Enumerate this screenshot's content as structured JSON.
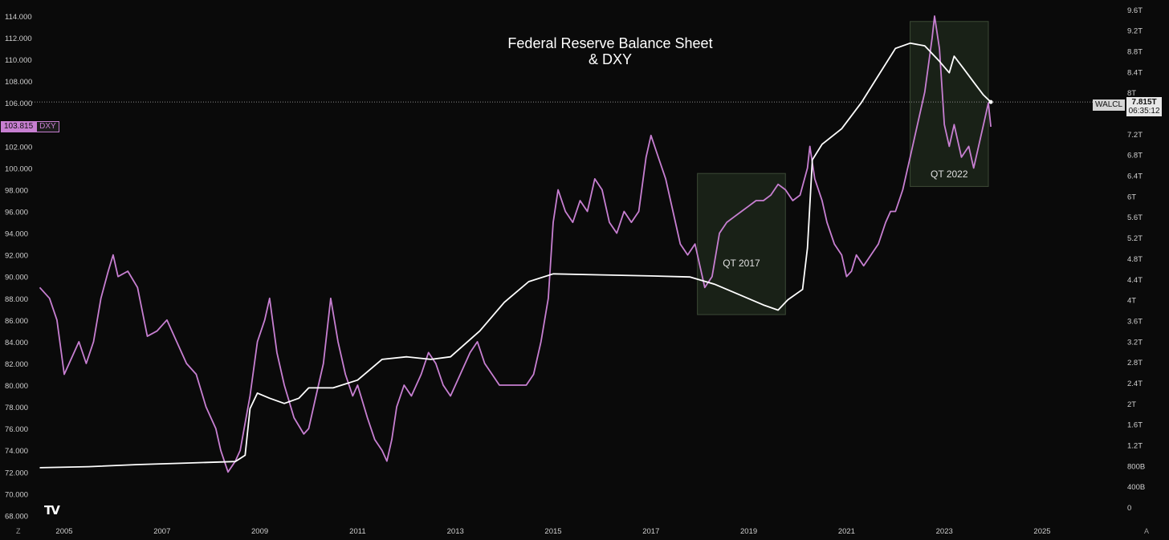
{
  "title_line1": "Federal Reserve Balance Sheet",
  "title_line2": "& DXY",
  "dxy_badge": {
    "value": "103.815",
    "symbol": "DXY"
  },
  "walcl_badge": {
    "symbol": "WALCL",
    "value": "7.815T",
    "countdown": "06:35:12"
  },
  "corner_left": "Z",
  "corner_right": "A",
  "logo_text": "TV",
  "colors": {
    "background": "#0a0a0a",
    "dxy_line": "#c77fd1",
    "walcl_line": "#ffffff",
    "qt_box_fill": "#1f2a1c"
  },
  "chart_data": {
    "type": "line",
    "x_ticks": [
      "2005",
      "2007",
      "2009",
      "2011",
      "2013",
      "2015",
      "2017",
      "2019",
      "2021",
      "2023",
      "2025"
    ],
    "left_axis": {
      "ticks": [
        "68.000",
        "70.000",
        "72.000",
        "74.000",
        "76.000",
        "78.000",
        "80.000",
        "82.000",
        "84.000",
        "86.000",
        "88.000",
        "90.000",
        "92.000",
        "94.000",
        "96.000",
        "98.000",
        "100.000",
        "102.000",
        "104.000",
        "106.000",
        "108.000",
        "110.000",
        "112.000",
        "114.000"
      ],
      "range": [
        68,
        114
      ]
    },
    "right_axis": {
      "ticks": [
        "0",
        "400B",
        "800B",
        "1.2T",
        "1.6T",
        "2T",
        "2.4T",
        "2.8T",
        "3.2T",
        "3.6T",
        "4T",
        "4.4T",
        "4.8T",
        "5.2T",
        "5.6T",
        "6T",
        "6.4T",
        "6.8T",
        "7.2T",
        "7.6T",
        "8T",
        "8.4T",
        "8.8T",
        "9.2T",
        "9.6T"
      ],
      "range_trillions": [
        0,
        9.6
      ]
    },
    "series": [
      {
        "name": "DXY",
        "axis": "left",
        "color": "#c77fd1",
        "points": [
          [
            2004.5,
            89
          ],
          [
            2004.7,
            88
          ],
          [
            2004.85,
            86
          ],
          [
            2005.0,
            81
          ],
          [
            2005.1,
            82
          ],
          [
            2005.3,
            84
          ],
          [
            2005.45,
            82
          ],
          [
            2005.6,
            84
          ],
          [
            2005.75,
            88
          ],
          [
            2005.9,
            90.5
          ],
          [
            2006.0,
            92
          ],
          [
            2006.1,
            90
          ],
          [
            2006.3,
            90.5
          ],
          [
            2006.5,
            89
          ],
          [
            2006.7,
            84.5
          ],
          [
            2006.9,
            85
          ],
          [
            2007.1,
            86
          ],
          [
            2007.3,
            84
          ],
          [
            2007.5,
            82
          ],
          [
            2007.7,
            81
          ],
          [
            2007.9,
            78
          ],
          [
            2008.1,
            76
          ],
          [
            2008.2,
            74
          ],
          [
            2008.35,
            72
          ],
          [
            2008.5,
            73
          ],
          [
            2008.6,
            74
          ],
          [
            2008.8,
            79
          ],
          [
            2008.95,
            84
          ],
          [
            2009.1,
            86
          ],
          [
            2009.2,
            88
          ],
          [
            2009.35,
            83
          ],
          [
            2009.5,
            80
          ],
          [
            2009.7,
            77
          ],
          [
            2009.9,
            75.5
          ],
          [
            2010.0,
            76
          ],
          [
            2010.15,
            79
          ],
          [
            2010.3,
            82
          ],
          [
            2010.45,
            88
          ],
          [
            2010.6,
            84
          ],
          [
            2010.75,
            81
          ],
          [
            2010.9,
            79
          ],
          [
            2011.0,
            80
          ],
          [
            2011.2,
            77
          ],
          [
            2011.35,
            75
          ],
          [
            2011.5,
            74
          ],
          [
            2011.6,
            73
          ],
          [
            2011.7,
            75
          ],
          [
            2011.8,
            78
          ],
          [
            2011.95,
            80
          ],
          [
            2012.1,
            79
          ],
          [
            2012.3,
            81
          ],
          [
            2012.45,
            83
          ],
          [
            2012.6,
            82
          ],
          [
            2012.75,
            80
          ],
          [
            2012.9,
            79
          ],
          [
            2013.1,
            81
          ],
          [
            2013.3,
            83
          ],
          [
            2013.45,
            84
          ],
          [
            2013.6,
            82
          ],
          [
            2013.75,
            81
          ],
          [
            2013.9,
            80
          ],
          [
            2014.1,
            80
          ],
          [
            2014.3,
            80
          ],
          [
            2014.45,
            80
          ],
          [
            2014.6,
            81
          ],
          [
            2014.75,
            84
          ],
          [
            2014.9,
            88
          ],
          [
            2015.0,
            95
          ],
          [
            2015.1,
            98
          ],
          [
            2015.25,
            96
          ],
          [
            2015.4,
            95
          ],
          [
            2015.55,
            97
          ],
          [
            2015.7,
            96
          ],
          [
            2015.85,
            99
          ],
          [
            2016.0,
            98
          ],
          [
            2016.15,
            95
          ],
          [
            2016.3,
            94
          ],
          [
            2016.45,
            96
          ],
          [
            2016.6,
            95
          ],
          [
            2016.75,
            96
          ],
          [
            2016.9,
            101
          ],
          [
            2017.0,
            103
          ],
          [
            2017.15,
            101
          ],
          [
            2017.3,
            99
          ],
          [
            2017.45,
            96
          ],
          [
            2017.6,
            93
          ],
          [
            2017.75,
            92
          ],
          [
            2017.9,
            93
          ],
          [
            2018.1,
            89
          ],
          [
            2018.25,
            90
          ],
          [
            2018.4,
            94
          ],
          [
            2018.55,
            95
          ],
          [
            2018.7,
            95.5
          ],
          [
            2018.85,
            96
          ],
          [
            2019.0,
            96.5
          ],
          [
            2019.15,
            97
          ],
          [
            2019.3,
            97
          ],
          [
            2019.45,
            97.5
          ],
          [
            2019.6,
            98.5
          ],
          [
            2019.75,
            98
          ],
          [
            2019.9,
            97
          ],
          [
            2020.05,
            97.5
          ],
          [
            2020.2,
            100
          ],
          [
            2020.25,
            102
          ],
          [
            2020.35,
            99
          ],
          [
            2020.5,
            97
          ],
          [
            2020.6,
            95
          ],
          [
            2020.75,
            93
          ],
          [
            2020.9,
            92
          ],
          [
            2021.0,
            90
          ],
          [
            2021.1,
            90.5
          ],
          [
            2021.2,
            92
          ],
          [
            2021.35,
            91
          ],
          [
            2021.5,
            92
          ],
          [
            2021.65,
            93
          ],
          [
            2021.8,
            95
          ],
          [
            2021.9,
            96
          ],
          [
            2022.0,
            96
          ],
          [
            2022.15,
            98
          ],
          [
            2022.3,
            101
          ],
          [
            2022.45,
            104
          ],
          [
            2022.6,
            107
          ],
          [
            2022.75,
            112
          ],
          [
            2022.8,
            114
          ],
          [
            2022.9,
            111
          ],
          [
            2023.0,
            104
          ],
          [
            2023.1,
            102
          ],
          [
            2023.2,
            104
          ],
          [
            2023.35,
            101
          ],
          [
            2023.5,
            102
          ],
          [
            2023.6,
            100
          ],
          [
            2023.75,
            103
          ],
          [
            2023.85,
            105
          ],
          [
            2023.9,
            106
          ],
          [
            2023.95,
            103.8
          ]
        ]
      },
      {
        "name": "WALCL",
        "axis": "right",
        "color": "#ffffff",
        "points": [
          [
            2004.5,
            0.76
          ],
          [
            2005.5,
            0.78
          ],
          [
            2006.5,
            0.82
          ],
          [
            2007.5,
            0.85
          ],
          [
            2008.5,
            0.88
          ],
          [
            2008.7,
            1.0
          ],
          [
            2008.8,
            1.9
          ],
          [
            2008.95,
            2.2
          ],
          [
            2009.2,
            2.1
          ],
          [
            2009.5,
            2.0
          ],
          [
            2009.8,
            2.1
          ],
          [
            2010.0,
            2.3
          ],
          [
            2010.5,
            2.3
          ],
          [
            2011.0,
            2.45
          ],
          [
            2011.5,
            2.85
          ],
          [
            2012.0,
            2.9
          ],
          [
            2012.5,
            2.85
          ],
          [
            2012.9,
            2.9
          ],
          [
            2013.5,
            3.4
          ],
          [
            2014.0,
            3.95
          ],
          [
            2014.5,
            4.35
          ],
          [
            2015.0,
            4.5
          ],
          [
            2016.0,
            4.48
          ],
          [
            2017.0,
            4.46
          ],
          [
            2017.8,
            4.44
          ],
          [
            2018.3,
            4.3
          ],
          [
            2018.8,
            4.1
          ],
          [
            2019.3,
            3.9
          ],
          [
            2019.6,
            3.8
          ],
          [
            2019.8,
            4.0
          ],
          [
            2020.1,
            4.2
          ],
          [
            2020.2,
            5.0
          ],
          [
            2020.3,
            6.7
          ],
          [
            2020.5,
            7.0
          ],
          [
            2020.9,
            7.3
          ],
          [
            2021.3,
            7.8
          ],
          [
            2021.7,
            8.4
          ],
          [
            2022.0,
            8.85
          ],
          [
            2022.3,
            8.95
          ],
          [
            2022.6,
            8.9
          ],
          [
            2022.9,
            8.6
          ],
          [
            2023.1,
            8.38
          ],
          [
            2023.2,
            8.7
          ],
          [
            2023.4,
            8.45
          ],
          [
            2023.6,
            8.2
          ],
          [
            2023.8,
            7.95
          ],
          [
            2023.95,
            7.815
          ]
        ]
      }
    ],
    "annotations": [
      {
        "label": "QT 2017",
        "x_range": [
          2017.95,
          2019.75
        ],
        "y_range": [
          86.5,
          99.5
        ]
      },
      {
        "label": "QT 2022",
        "x_range": [
          2022.3,
          2023.9
        ],
        "y_range": [
          98.3,
          113.5
        ]
      }
    ]
  }
}
